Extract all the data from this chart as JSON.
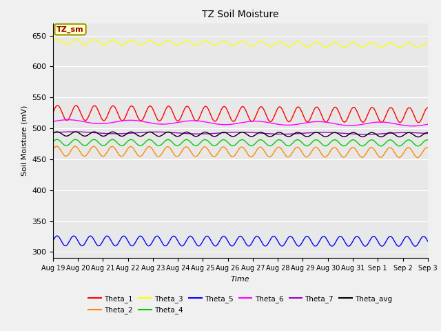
{
  "title": "TZ Soil Moisture",
  "xlabel": "Time",
  "ylabel": "Soil Moisture (mV)",
  "ylim": [
    290,
    670
  ],
  "yticks": [
    300,
    350,
    400,
    450,
    500,
    550,
    600,
    650
  ],
  "xlim": [
    0,
    15.0
  ],
  "x_tick_positions": [
    0,
    1,
    2,
    3,
    4,
    5,
    6,
    7,
    8,
    9,
    10,
    11,
    12,
    13,
    14,
    15
  ],
  "x_tick_labels": [
    "Aug 19",
    "Aug 20",
    "Aug 21",
    "Aug 22",
    "Aug 23",
    "Aug 24",
    "Aug 25",
    "Aug 26",
    "Aug 27",
    "Aug 28",
    "Aug 29",
    "Aug 30",
    "Aug 31",
    "Sep 1",
    "Sep 2",
    "Sep 3"
  ],
  "series_order": [
    "Theta_1",
    "Theta_2",
    "Theta_3",
    "Theta_4",
    "Theta_5",
    "Theta_6",
    "Theta_7",
    "Theta_avg"
  ],
  "series": {
    "Theta_1": {
      "color": "#ff0000",
      "base": 525,
      "amp": 12,
      "freq": 1.35,
      "phase": 0.0,
      "trend": -0.25
    },
    "Theta_2": {
      "color": "#ff8800",
      "base": 463,
      "amp": 8,
      "freq": 1.35,
      "phase": 0.3,
      "trend": -0.15
    },
    "Theta_3": {
      "color": "#ffff00",
      "base": 640,
      "amp": 4,
      "freq": 1.35,
      "phase": 0.1,
      "trend": -0.4
    },
    "Theta_4": {
      "color": "#00cc00",
      "base": 477,
      "amp": 5,
      "freq": 1.35,
      "phase": 0.2,
      "trend": -0.05
    },
    "Theta_5": {
      "color": "#0000ff",
      "base": 318,
      "amp": 8,
      "freq": 1.5,
      "phase": 0.0,
      "trend": -0.05
    },
    "Theta_6": {
      "color": "#ff00ff",
      "base": 511,
      "amp": 3,
      "freq": 0.4,
      "phase": 0.0,
      "trend": -0.3
    },
    "Theta_7": {
      "color": "#9900cc",
      "base": 493,
      "amp": 1.5,
      "freq": 0.3,
      "phase": 0.0,
      "trend": -0.1
    },
    "Theta_avg": {
      "color": "#000000",
      "base": 491,
      "amp": 3.5,
      "freq": 1.35,
      "phase": 0.15,
      "trend": -0.1
    }
  },
  "bg_color": "#e8e8e8",
  "fig_color": "#f0f0f0",
  "annotation_text": "TZ_sm",
  "legend_ncol": 6
}
